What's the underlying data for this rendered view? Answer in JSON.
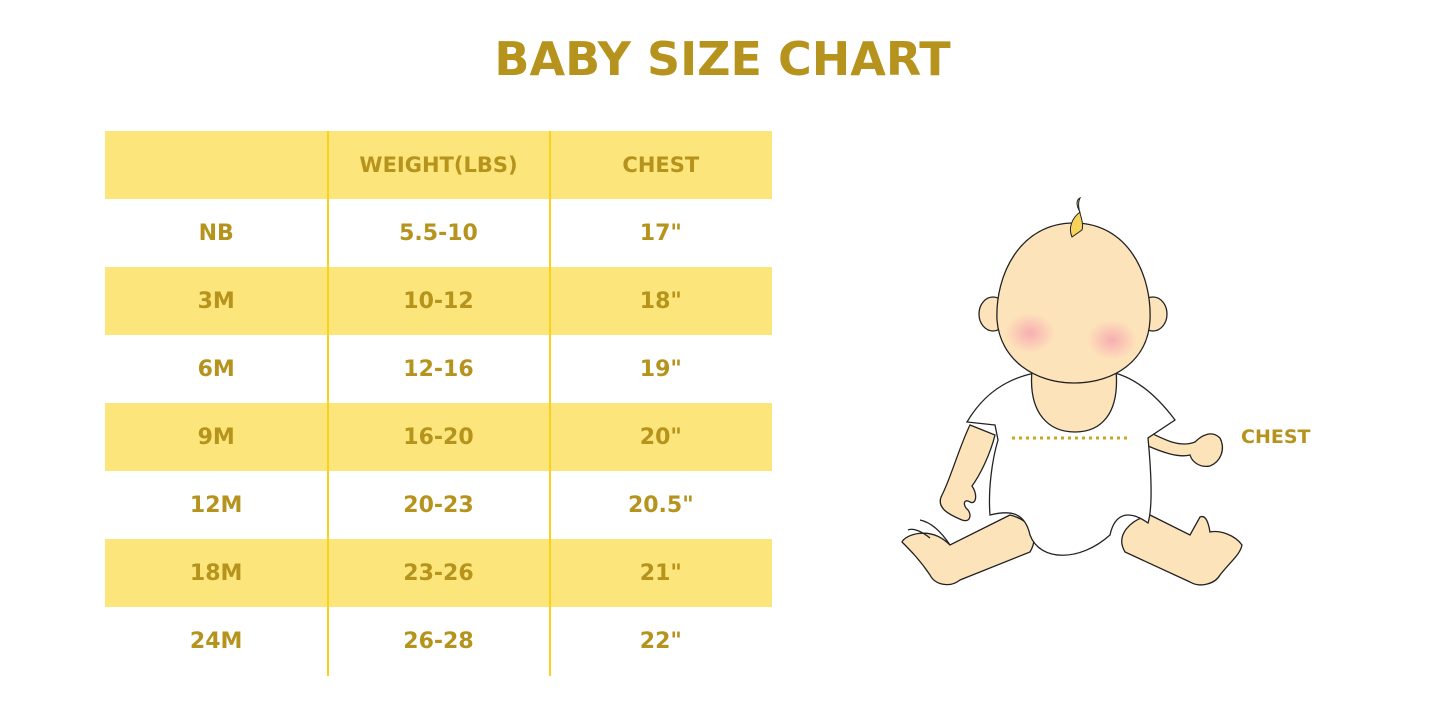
{
  "title": "BABY SIZE CHART",
  "table": {
    "headers": [
      "",
      "WEIGHT(LBS)",
      "CHEST"
    ],
    "rows": [
      [
        "NB",
        "5.5-10",
        "17\""
      ],
      [
        "3M",
        "10-12",
        "18\""
      ],
      [
        "6M",
        "12-16",
        "19\""
      ],
      [
        "9M",
        "16-20",
        "20\""
      ],
      [
        "12M",
        "20-23",
        "20.5\""
      ],
      [
        "18M",
        "23-26",
        "21\""
      ],
      [
        "24M",
        "26-28",
        "22\""
      ]
    ]
  },
  "illustration": {
    "icon": "baby-sitting-illustration",
    "chest_label": "CHEST"
  },
  "colors": {
    "text": "#B5931C",
    "band": "#FCE57A",
    "divider": "#F9D21E",
    "skin": "#FDE3BA"
  }
}
